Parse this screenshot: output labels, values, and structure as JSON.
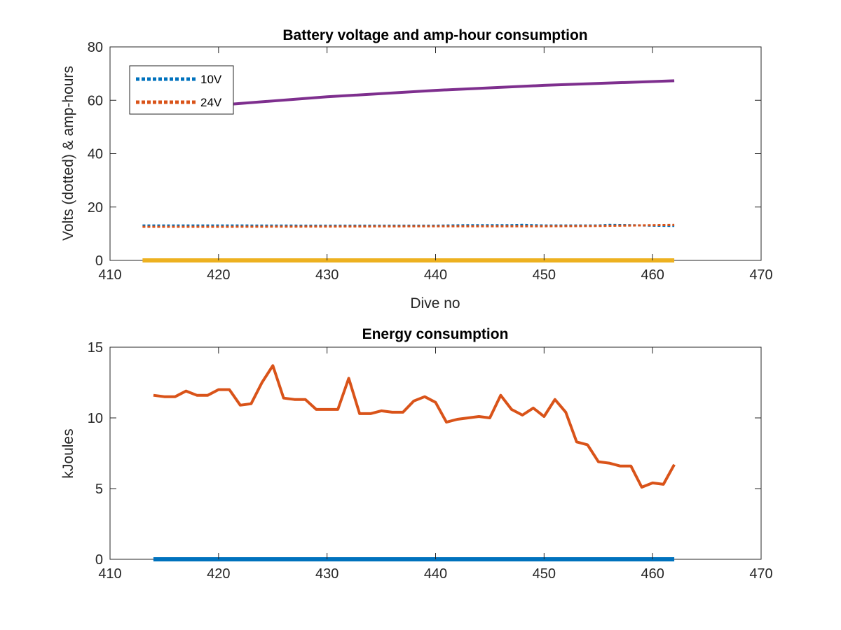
{
  "chart_data": [
    {
      "type": "line",
      "title": "Battery voltage and amp-hour consumption",
      "xlabel": "Dive no",
      "ylabel": "Volts (dotted) & amp-hours",
      "xlim": [
        410,
        470
      ],
      "ylim": [
        0,
        80
      ],
      "xticks": [
        410,
        420,
        430,
        440,
        450,
        460,
        470
      ],
      "yticks": [
        0,
        20,
        40,
        60,
        80
      ],
      "legend": {
        "placement": "top-left",
        "entries": [
          "10V",
          "24V"
        ]
      },
      "series": [
        {
          "name": "10V",
          "style": "dotted",
          "color": "#0072BD",
          "x": [
            413,
            420,
            430,
            440,
            443,
            447,
            448,
            450,
            455,
            456,
            458,
            460,
            462
          ],
          "y": [
            13.1,
            13.1,
            13.0,
            13.0,
            13.2,
            13.2,
            13.3,
            13.1,
            13.1,
            13.3,
            13.2,
            13.0,
            12.9
          ]
        },
        {
          "name": "24V",
          "style": "dotted",
          "color": "#D95319",
          "x": [
            413,
            420,
            430,
            440,
            450,
            455,
            460,
            462
          ],
          "y": [
            12.6,
            12.6,
            12.7,
            12.8,
            12.8,
            12.9,
            13.2,
            13.3
          ]
        },
        {
          "style": "solid",
          "color": "#7E2F8E",
          "x": [
            421,
            430,
            440,
            450,
            462
          ],
          "y": [
            58.5,
            61.3,
            63.7,
            65.6,
            67.3
          ]
        },
        {
          "style": "solid",
          "color": "#EDB120",
          "x": [
            413,
            462
          ],
          "y": [
            0,
            0
          ]
        }
      ]
    },
    {
      "type": "line",
      "title": "Energy consumption",
      "xlabel": "",
      "ylabel": "kJoules",
      "xlim": [
        410,
        470
      ],
      "ylim": [
        0,
        15
      ],
      "xticks": [
        410,
        420,
        430,
        440,
        450,
        460,
        470
      ],
      "yticks": [
        0,
        5,
        10,
        15
      ],
      "series": [
        {
          "style": "solid",
          "color": "#D95319",
          "x": [
            414,
            415,
            416,
            417,
            418,
            419,
            420,
            421,
            422,
            423,
            424,
            425,
            426,
            427,
            428,
            429,
            430,
            431,
            432,
            433,
            434,
            435,
            436,
            437,
            438,
            439,
            440,
            441,
            442,
            443,
            444,
            445,
            446,
            447,
            448,
            449,
            450,
            451,
            452,
            453,
            454,
            455,
            456,
            457,
            458,
            459,
            460,
            461,
            462
          ],
          "y": [
            11.6,
            11.5,
            11.5,
            11.9,
            11.6,
            11.6,
            12.0,
            12.0,
            10.9,
            11.0,
            12.5,
            13.7,
            11.4,
            11.3,
            11.3,
            10.6,
            10.6,
            10.6,
            12.8,
            10.3,
            10.3,
            10.5,
            10.4,
            10.4,
            11.2,
            11.5,
            11.1,
            9.7,
            9.9,
            10.0,
            10.1,
            10.0,
            11.6,
            10.6,
            10.2,
            10.7,
            10.1,
            11.3,
            10.4,
            8.3,
            8.1,
            6.9,
            6.8,
            6.6,
            6.6,
            5.1,
            5.4,
            5.3,
            6.7
          ]
        },
        {
          "style": "solid",
          "color": "#0072BD",
          "x": [
            414,
            462
          ],
          "y": [
            0,
            0
          ]
        }
      ]
    }
  ]
}
